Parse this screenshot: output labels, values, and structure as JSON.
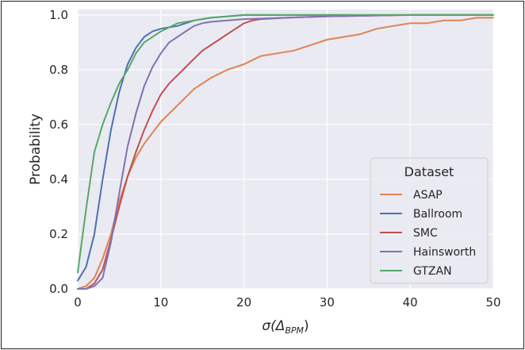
{
  "chart_data": {
    "type": "line",
    "title": "",
    "xlabel_main": "σ(Δ",
    "xlabel_sub": "BPM",
    "xlabel_end": ")",
    "ylabel": "Probability",
    "xlim": [
      0,
      50
    ],
    "ylim": [
      0,
      1.02
    ],
    "xticks": [
      0,
      10,
      20,
      30,
      40,
      50
    ],
    "yticks": [
      0.0,
      0.2,
      0.4,
      0.6,
      0.8,
      1.0
    ],
    "xtick_labels": [
      "0",
      "10",
      "20",
      "30",
      "40",
      "50"
    ],
    "ytick_labels": [
      "0.0",
      "0.2",
      "0.4",
      "0.6",
      "0.8",
      "1.0"
    ],
    "grid": true,
    "background": "#eaeaf2",
    "legend": {
      "title": "Dataset",
      "placement": "lower-right"
    },
    "series": [
      {
        "name": "ASAP",
        "color": "#dd8452",
        "x": [
          0,
          1,
          2,
          3,
          4,
          5,
          6,
          7,
          8,
          9,
          10,
          12,
          14,
          16,
          18,
          20,
          22,
          24,
          26,
          28,
          30,
          32,
          34,
          36,
          38,
          40,
          42,
          44,
          46,
          48,
          50
        ],
        "y": [
          0.0,
          0.01,
          0.04,
          0.11,
          0.2,
          0.32,
          0.41,
          0.48,
          0.53,
          0.57,
          0.61,
          0.67,
          0.73,
          0.77,
          0.8,
          0.82,
          0.85,
          0.86,
          0.87,
          0.89,
          0.91,
          0.92,
          0.93,
          0.95,
          0.96,
          0.97,
          0.97,
          0.98,
          0.98,
          0.99,
          0.99
        ]
      },
      {
        "name": "Ballroom",
        "color": "#4c72b0",
        "x": [
          0,
          1,
          2,
          3,
          4,
          5,
          6,
          7,
          8,
          9,
          10,
          12,
          14,
          16,
          18,
          20,
          22,
          25,
          30,
          40,
          50
        ],
        "y": [
          0.03,
          0.08,
          0.2,
          0.4,
          0.58,
          0.72,
          0.82,
          0.88,
          0.92,
          0.94,
          0.95,
          0.96,
          0.98,
          0.99,
          0.995,
          1.0,
          1.0,
          1.0,
          1.0,
          1.0,
          1.0
        ]
      },
      {
        "name": "SMC",
        "color": "#c44e52",
        "x": [
          0,
          1,
          2,
          3,
          4,
          5,
          6,
          7,
          8,
          9,
          10,
          11,
          12,
          13,
          14,
          15,
          16,
          17,
          18,
          19,
          20,
          21,
          22,
          25,
          30,
          40,
          50
        ],
        "y": [
          0.0,
          0.0,
          0.02,
          0.07,
          0.18,
          0.3,
          0.41,
          0.5,
          0.58,
          0.65,
          0.71,
          0.75,
          0.78,
          0.81,
          0.84,
          0.87,
          0.89,
          0.91,
          0.93,
          0.95,
          0.97,
          0.98,
          0.985,
          0.99,
          0.995,
          1.0,
          1.0
        ]
      },
      {
        "name": "Hainsworth",
        "color": "#8172b3",
        "x": [
          0,
          1,
          2,
          3,
          4,
          5,
          6,
          7,
          8,
          9,
          10,
          11,
          12,
          13,
          14,
          15,
          16,
          18,
          20,
          25,
          30,
          40,
          50
        ],
        "y": [
          0.0,
          0.0,
          0.01,
          0.04,
          0.17,
          0.35,
          0.52,
          0.64,
          0.74,
          0.81,
          0.86,
          0.9,
          0.92,
          0.94,
          0.96,
          0.97,
          0.975,
          0.98,
          0.985,
          0.99,
          0.995,
          1.0,
          1.0
        ]
      },
      {
        "name": "GTZAN",
        "color": "#55a868",
        "x": [
          0,
          1,
          2,
          3,
          4,
          5,
          6,
          7,
          8,
          9,
          10,
          12,
          14,
          16,
          18,
          20,
          25,
          30,
          40,
          50
        ],
        "y": [
          0.06,
          0.29,
          0.5,
          0.6,
          0.68,
          0.75,
          0.8,
          0.86,
          0.9,
          0.92,
          0.94,
          0.97,
          0.98,
          0.99,
          0.995,
          1.0,
          1.0,
          1.0,
          1.0,
          1.0
        ]
      }
    ]
  }
}
